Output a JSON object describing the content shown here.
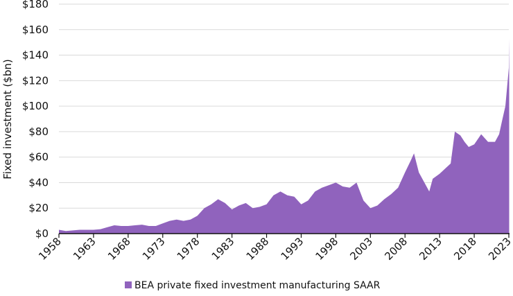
{
  "chart_data": {
    "type": "area",
    "title": "",
    "xlabel": "",
    "ylabel": "Fixed investment ($bn)",
    "xlim": [
      1958,
      2023.3
    ],
    "ylim": [
      0,
      180
    ],
    "grid": true,
    "legend_position": "bottom",
    "color": "#9063bd",
    "x_ticks": [
      "1958",
      "1963",
      "1968",
      "1973",
      "1978",
      "1983",
      "1988",
      "1993",
      "1998",
      "2003",
      "2008",
      "2013",
      "2018",
      "2023"
    ],
    "y_ticks": [
      "$0",
      "$20",
      "$40",
      "$60",
      "$80",
      "$100",
      "$120",
      "$140",
      "$160",
      "$180"
    ],
    "series": [
      {
        "name": "BEA private fixed investment manufacturing SAAR",
        "x": [
          1958,
          1959,
          1960,
          1961,
          1962,
          1963,
          1964,
          1965,
          1966,
          1967,
          1968,
          1969,
          1970,
          1971,
          1972,
          1973,
          1974,
          1975,
          1976,
          1977,
          1978,
          1979,
          1980,
          1981,
          1982,
          1983,
          1984,
          1985,
          1986,
          1987,
          1988,
          1989,
          1990,
          1991,
          1992,
          1993,
          1994,
          1995,
          1996,
          1997,
          1998,
          1999,
          2000,
          2001,
          2002,
          2003,
          2004,
          2005,
          2006,
          2007,
          2008,
          2008.8,
          2009.3,
          2010,
          2010.8,
          2011.5,
          2012,
          2013,
          2014,
          2014.6,
          2015.2,
          2016,
          2016.6,
          2017.2,
          2018,
          2019,
          2020,
          2021,
          2021.6,
          2022,
          2022.5,
          2023,
          2023.3
        ],
        "values": [
          3,
          2,
          2.5,
          3,
          3,
          3,
          3.5,
          5,
          6.5,
          6,
          6,
          6.5,
          7,
          6,
          6,
          8,
          10,
          11,
          10,
          11,
          14,
          20,
          23,
          27,
          24,
          19,
          22,
          24,
          20,
          21,
          23,
          30,
          33,
          30,
          29,
          23,
          26,
          33,
          36,
          38,
          40,
          37,
          36,
          40,
          26,
          20,
          22,
          27,
          31,
          36,
          48,
          57,
          63,
          48,
          40,
          33,
          43,
          47,
          52,
          55,
          80,
          77,
          72,
          68,
          70,
          78,
          72,
          72,
          78,
          88,
          100,
          130,
          153
        ]
      }
    ]
  }
}
